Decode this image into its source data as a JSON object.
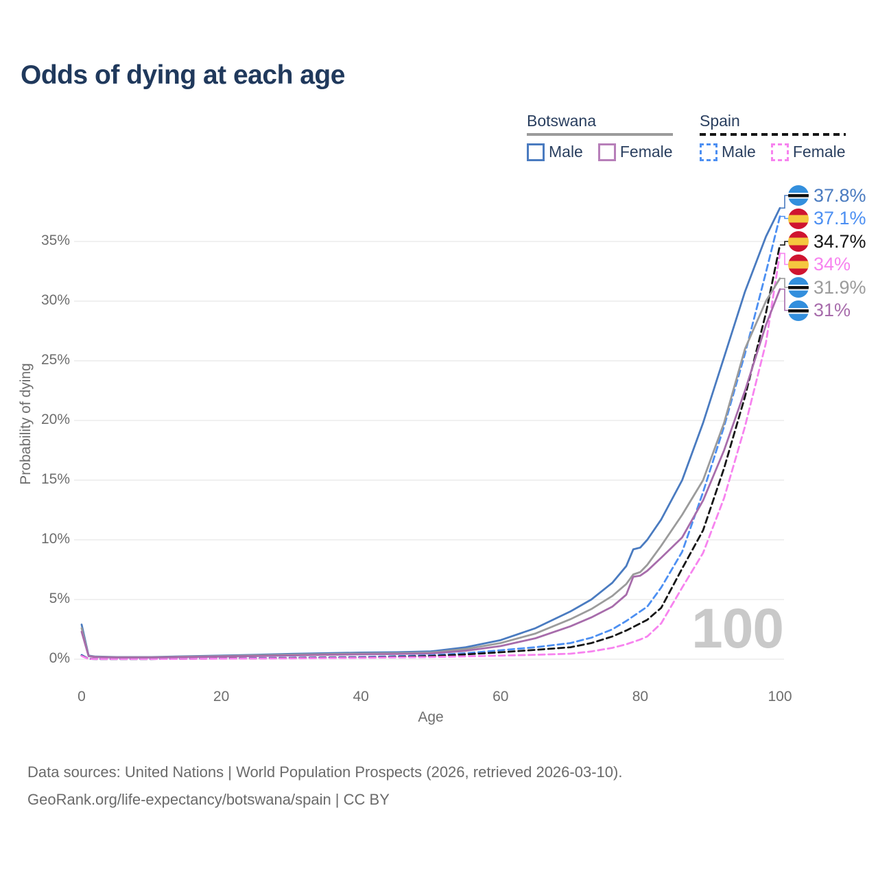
{
  "title": "Odds of dying at each age",
  "hover_age": "100",
  "legend": {
    "groups": [
      {
        "label": "Botswana",
        "line_style": "solid",
        "line_color": "#9b9b9b",
        "items": [
          {
            "label": "Male",
            "color": "#4a7bc0",
            "style": "solid"
          },
          {
            "label": "Female",
            "color": "#b77fb9",
            "style": "solid"
          }
        ]
      },
      {
        "label": "Spain",
        "line_style": "dashed",
        "line_color": "#151515",
        "items": [
          {
            "label": "Male",
            "color": "#4c8ff2",
            "style": "dashed"
          },
          {
            "label": "Female",
            "color": "#f783ef",
            "style": "dashed"
          }
        ]
      }
    ]
  },
  "chart_data": {
    "type": "line",
    "title": "Odds of dying at each age",
    "xlabel": "Age",
    "ylabel": "Probability of dying",
    "xlim": [
      0,
      100
    ],
    "ylim_pct": [
      0,
      38.5
    ],
    "grid": "horizontal",
    "x_ticks": [
      {
        "label": "0",
        "value": 0
      },
      {
        "label": "20",
        "value": 20
      },
      {
        "label": "40",
        "value": 40
      },
      {
        "label": "60",
        "value": 60
      },
      {
        "label": "80",
        "value": 80
      },
      {
        "label": "100",
        "value": 100
      }
    ],
    "y_ticks": [
      {
        "label": "0%",
        "value": 0
      },
      {
        "label": "5%",
        "value": 5
      },
      {
        "label": "10%",
        "value": 10
      },
      {
        "label": "15%",
        "value": 15
      },
      {
        "label": "20%",
        "value": 20
      },
      {
        "label": "25%",
        "value": 25
      },
      {
        "label": "30%",
        "value": 30
      },
      {
        "label": "35%",
        "value": 35
      }
    ],
    "ages": [
      0,
      1,
      2,
      5,
      10,
      15,
      20,
      25,
      30,
      35,
      40,
      45,
      50,
      55,
      60,
      65,
      70,
      73,
      76,
      78,
      79,
      80,
      81,
      83,
      86,
      89,
      92,
      95,
      98,
      100
    ],
    "series": [
      {
        "id": "botswana-male",
        "country": "Botswana",
        "sex": "Male",
        "style": "solid",
        "color": "#4a7bc0",
        "flag": "botswana",
        "end_label": "37.8%",
        "values": [
          2.9,
          0.3,
          0.22,
          0.18,
          0.18,
          0.24,
          0.3,
          0.37,
          0.44,
          0.5,
          0.55,
          0.58,
          0.65,
          1.0,
          1.6,
          2.6,
          4.0,
          5.0,
          6.4,
          7.8,
          9.2,
          9.35,
          10.0,
          11.7,
          15.0,
          19.8,
          25.3,
          30.8,
          35.4,
          37.8
        ]
      },
      {
        "id": "spain-male",
        "country": "Spain",
        "sex": "Male",
        "style": "dashed",
        "color": "#4c8ff2",
        "flag": "spain",
        "end_label": "37.1%",
        "values": [
          0.35,
          0.03,
          0.02,
          0.02,
          0.02,
          0.04,
          0.07,
          0.09,
          0.12,
          0.15,
          0.18,
          0.24,
          0.33,
          0.5,
          0.75,
          1.0,
          1.35,
          1.8,
          2.5,
          3.2,
          3.6,
          4.0,
          4.4,
          6.0,
          9.0,
          14.0,
          19.5,
          25.6,
          32.4,
          37.1
        ]
      },
      {
        "id": "spain-both",
        "country": "Spain",
        "sex": "Both sexes",
        "style": "dashed",
        "color": "#161616",
        "flag": "spain",
        "end_label": "34.7%",
        "values": [
          0.3,
          0.028,
          0.018,
          0.018,
          0.018,
          0.035,
          0.055,
          0.07,
          0.09,
          0.12,
          0.14,
          0.19,
          0.26,
          0.4,
          0.58,
          0.78,
          1.0,
          1.35,
          1.9,
          2.4,
          2.7,
          3.0,
          3.3,
          4.3,
          7.6,
          10.8,
          16.0,
          22.0,
          29.0,
          34.7
        ]
      },
      {
        "id": "spain-female",
        "country": "Spain",
        "sex": "Female",
        "style": "dashed",
        "color": "#f783ef",
        "flag": "spain",
        "end_label": "34%",
        "values": [
          0.27,
          0.025,
          0.015,
          0.015,
          0.015,
          0.03,
          0.045,
          0.055,
          0.07,
          0.09,
          0.11,
          0.15,
          0.18,
          0.24,
          0.3,
          0.37,
          0.46,
          0.65,
          0.95,
          1.25,
          1.45,
          1.65,
          1.9,
          3.0,
          6.0,
          8.9,
          13.5,
          19.5,
          26.5,
          34.0
        ]
      },
      {
        "id": "botswana-both",
        "country": "Botswana",
        "sex": "Both sexes",
        "style": "solid",
        "color": "#9b9b9b",
        "flag": "botswana",
        "end_label": "31.9%",
        "values": [
          2.6,
          0.27,
          0.2,
          0.16,
          0.16,
          0.21,
          0.26,
          0.32,
          0.38,
          0.43,
          0.47,
          0.5,
          0.56,
          0.85,
          1.35,
          2.15,
          3.35,
          4.2,
          5.3,
          6.3,
          7.1,
          7.3,
          7.9,
          9.5,
          12.1,
          15.0,
          19.8,
          26.0,
          30.0,
          31.9
        ]
      },
      {
        "id": "botswana-female",
        "country": "Botswana",
        "sex": "Female",
        "style": "solid",
        "color": "#a76cab",
        "flag": "botswana",
        "end_label": "31%",
        "values": [
          2.3,
          0.25,
          0.17,
          0.14,
          0.14,
          0.17,
          0.21,
          0.26,
          0.31,
          0.36,
          0.4,
          0.43,
          0.48,
          0.7,
          1.1,
          1.75,
          2.75,
          3.5,
          4.4,
          5.4,
          6.9,
          7.0,
          7.4,
          8.5,
          10.2,
          13.3,
          17.5,
          22.5,
          28.0,
          31.0
        ]
      }
    ]
  },
  "footer": {
    "line1": "Data sources: United Nations | World Population Prospects (2026, retrieved 2026-03-10).",
    "line2": "GeoRank.org/life-expectancy/botswana/spain | CC BY"
  }
}
